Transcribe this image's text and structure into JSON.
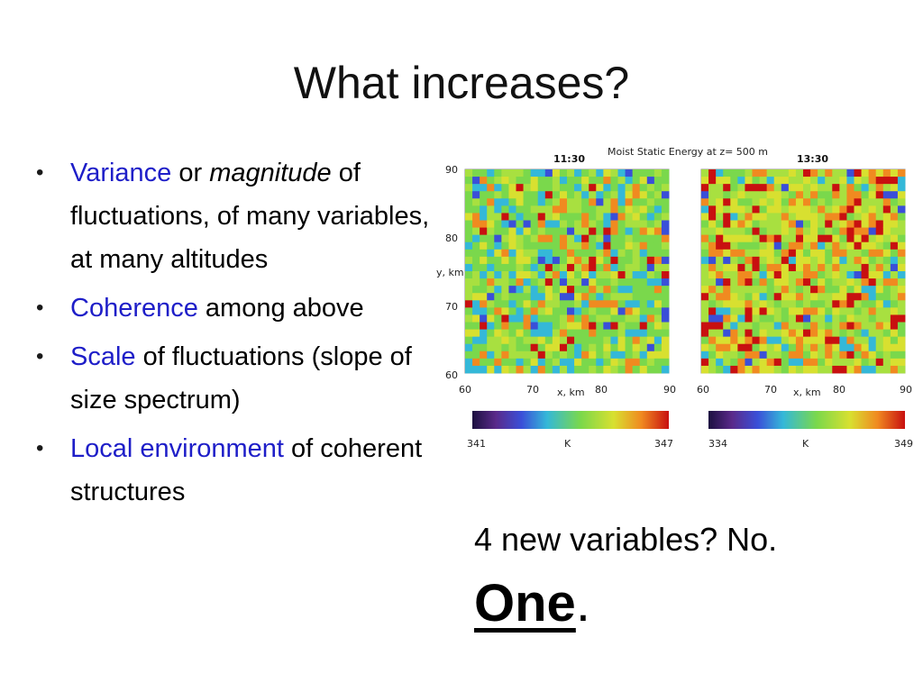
{
  "slide": {
    "title": "What increases?",
    "bullets": [
      {
        "parts": [
          {
            "text": "Variance",
            "style": "hl"
          },
          {
            "text": " or ",
            "style": ""
          },
          {
            "text": "magnitude",
            "style": "em"
          },
          {
            "text": " of fluctuations, of many variables, at many altitudes",
            "style": ""
          }
        ]
      },
      {
        "parts": [
          {
            "text": "Coherence",
            "style": "hl"
          },
          {
            "text": " among above",
            "style": ""
          }
        ]
      },
      {
        "parts": [
          {
            "text": "Scale",
            "style": "hl"
          },
          {
            "text": " of fluctuations (slope of size spectrum)",
            "style": ""
          }
        ]
      },
      {
        "parts": [
          {
            "text": "Local environment",
            "style": "hl"
          },
          {
            "text": " of coherent structures",
            "style": ""
          }
        ]
      }
    ],
    "question": "4 new variables? No.",
    "answer_word": "One",
    "answer_punct": "."
  },
  "figure": {
    "title": "Moist Static Energy at z= 500 m",
    "left_time": "11:30",
    "right_time": "13:30",
    "y_axis_label": "y, km",
    "x_axis_label": "x, km",
    "y_ticks": [
      "90",
      "80",
      "70",
      "60"
    ],
    "x_ticks": [
      "60",
      "70",
      "80",
      "90"
    ],
    "left_colorbar": {
      "min": "341",
      "unit": "K",
      "max": "347"
    },
    "right_colorbar": {
      "min": "334",
      "unit": "K",
      "max": "349"
    },
    "colors": {
      "low": "#1c1040",
      "mid": "#7ad84c",
      "high": "#c81010"
    }
  }
}
